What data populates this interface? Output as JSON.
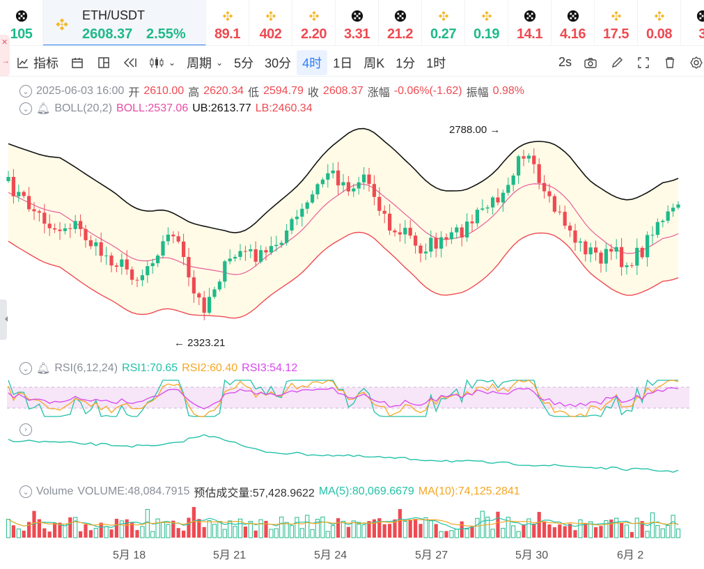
{
  "ticker": {
    "items": [
      {
        "icon": "okx-icon",
        "text": "105",
        "color": "#1fb98a"
      },
      {
        "icon": "bnb-icon",
        "text": "89.1",
        "color": "#ee4a52"
      },
      {
        "icon": "bnb-icon",
        "text": "402",
        "color": "#ee4a52"
      },
      {
        "icon": "bnb-icon",
        "text": "2.20",
        "color": "#ee4a52"
      },
      {
        "icon": "okx-icon",
        "text": "3.31",
        "color": "#ee4a52"
      },
      {
        "icon": "okx-icon",
        "text": "21.2",
        "color": "#ee4a52"
      },
      {
        "icon": "bnb-icon",
        "text": "0.27",
        "color": "#1fb98a"
      },
      {
        "icon": "bnb-icon",
        "text": "0.19",
        "color": "#1fb98a"
      },
      {
        "icon": "okx-icon",
        "text": "14.1",
        "color": "#ee4a52"
      },
      {
        "icon": "okx-icon",
        "text": "4.16",
        "color": "#ee4a52"
      },
      {
        "icon": "bnb-icon",
        "text": "17.5",
        "color": "#ee4a52"
      },
      {
        "icon": "bnb-icon",
        "text": "0.08",
        "color": "#ee4a52"
      },
      {
        "icon": "okx-icon",
        "text": "3",
        "color": "#ee4a52"
      }
    ],
    "active": {
      "symbol": "ETH/USDT",
      "price": "2608.37",
      "change": "2.55%"
    }
  },
  "toolbar": {
    "indicator_label": "指标",
    "period_label": "周期",
    "intervals": [
      "5分",
      "30分",
      "4时",
      "1日",
      "周K",
      "1分",
      "1时"
    ],
    "active_interval": "4时",
    "refresh_label": "2s"
  },
  "ohlc": {
    "datetime": "2025-06-03 16:00",
    "open_label": "开",
    "open": "2610.00",
    "high_label": "高",
    "high": "2620.34",
    "low_label": "低",
    "low": "2594.79",
    "close_label": "收",
    "close": "2608.37",
    "change_label": "涨幅",
    "change": "-0.06%(-1.62)",
    "amplitude_label": "振幅",
    "amplitude": "0.98%"
  },
  "boll": {
    "name": "BOLL(20,2)",
    "boll": "BOLL:2537.06",
    "ub": "UB:2613.77",
    "lb": "LB:2460.34"
  },
  "rsi": {
    "name": "RSI(6,12,24)",
    "rsi1": "RSI1:70.65",
    "rsi2": "RSI2:60.40",
    "rsi3": "RSI3:54.12"
  },
  "volume": {
    "name": "Volume",
    "volume": "VOLUME:48,084.7915",
    "est_label": "预估成交量:",
    "est": "57,428.9622",
    "ma5": "MA(5):80,069.6679",
    "ma10": "MA(10):74,125.2841"
  },
  "annotations": {
    "high": "2788.00",
    "low": "2323.21"
  },
  "x_labels": [
    "5月 18",
    "5月 21",
    "5月 24",
    "5月 27",
    "5月 30",
    "6月 2"
  ],
  "colors": {
    "up": "#1fb98a",
    "down": "#ee4a52",
    "accent": "#2f7ef7",
    "boll_mid": "#e85d9a",
    "ub": "#111111",
    "lb": "#ee4a52",
    "band_fill": "#fffbe6",
    "rsi1": "#22c1a8",
    "rsi2": "#f5a623",
    "rsi3": "#d946ef"
  }
}
